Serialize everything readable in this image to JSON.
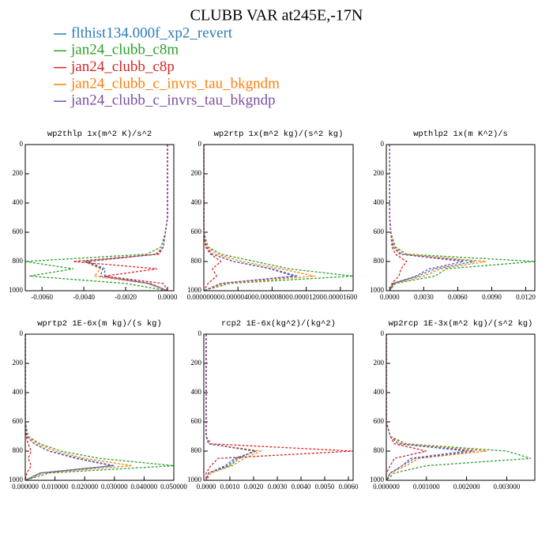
{
  "title": "CLUBB VAR at245E,-17N",
  "legend": [
    {
      "name": "flthist134.000f_xp2_revert",
      "color": "#2b7bb5"
    },
    {
      "name": "jan24_clubb_c8m",
      "color": "#2ca02c"
    },
    {
      "name": "jan24_clubb_c8p",
      "color": "#d62728"
    },
    {
      "name": "jan24_clubb_c_invrs_tau_bkgndm",
      "color": "#ff7f0e"
    },
    {
      "name": "jan24_clubb_c_invrs_tau_bkgndp",
      "color": "#7b4fa3"
    }
  ],
  "chart_data": [
    {
      "type": "line",
      "title": "wp2thlp  1x(m^2 K)/s^2",
      "y": [
        0,
        100,
        200,
        300,
        400,
        500,
        600,
        700,
        750,
        800,
        850,
        900,
        950,
        1000
      ],
      "ylim": [
        1000,
        0
      ],
      "yticks": [
        0,
        200,
        400,
        600,
        800,
        1000
      ],
      "xlim": [
        -0.0068,
        0.0003
      ],
      "xticks": [
        {
          "value": -0.006,
          "label": "-0.0060"
        },
        {
          "value": -0.004,
          "label": "-0.0040"
        },
        {
          "value": -0.002,
          "label": "-0.0020"
        },
        {
          "value": 0,
          "label": "0.0000"
        }
      ],
      "series": [
        {
          "color": "#2b7bb5",
          "values": [
            0,
            0,
            0,
            0,
            0,
            0,
            -0.0001,
            -0.0002,
            -0.0005,
            -0.0038,
            -0.003,
            -0.003,
            -0.0008,
            0
          ]
        },
        {
          "color": "#2ca02c",
          "values": [
            0,
            0,
            0,
            0,
            0,
            0,
            -0.0001,
            -0.0003,
            -0.001,
            -0.0068,
            -0.0045,
            -0.0066,
            -0.002,
            0
          ]
        },
        {
          "color": "#d62728",
          "values": [
            0,
            0,
            0,
            0,
            0,
            0,
            -0.0001,
            -0.0002,
            -0.0004,
            -0.0045,
            -0.0005,
            -0.003,
            -0.0002,
            0
          ]
        },
        {
          "color": "#ff7f0e",
          "values": [
            0,
            0,
            0,
            0,
            0,
            0,
            -0.0001,
            -0.0002,
            -0.0006,
            -0.004,
            -0.0032,
            -0.0035,
            -0.001,
            0
          ]
        },
        {
          "color": "#7b4fa3",
          "values": [
            0,
            0,
            0,
            0,
            0,
            0,
            -0.0001,
            -0.0002,
            -0.0005,
            -0.0039,
            -0.0031,
            -0.0032,
            -0.0009,
            0
          ]
        }
      ]
    },
    {
      "type": "line",
      "title": "wp2rtp  1x(m^2 kg)/(s^2 kg)",
      "y": [
        0,
        100,
        200,
        300,
        400,
        500,
        600,
        700,
        750,
        800,
        850,
        900,
        950,
        1000
      ],
      "ylim": [
        1000,
        0
      ],
      "yticks": [
        0,
        200,
        400,
        600,
        800,
        1000
      ],
      "xlim": [
        0,
        1.75e-05
      ],
      "xticks": [
        {
          "value": 0,
          "label": "0.00000000"
        },
        {
          "value": 4e-06,
          "label": "0.00000400"
        },
        {
          "value": 8e-06,
          "label": "0.00000800"
        },
        {
          "value": 1.2e-05,
          "label": "0.00001200"
        },
        {
          "value": 1.6e-05,
          "label": "0.00001600"
        }
      ],
      "series": [
        {
          "color": "#2b7bb5",
          "values": [
            0,
            0,
            0,
            0,
            0,
            0,
            0,
            3e-07,
            1e-06,
            3.5e-06,
            8e-06,
            1.1e-05,
            2e-06,
            0
          ]
        },
        {
          "color": "#2ca02c",
          "values": [
            0,
            0,
            0,
            0,
            0,
            0,
            0,
            5e-07,
            2e-06,
            6e-06,
            1e-05,
            1.75e-05,
            3e-06,
            0
          ]
        },
        {
          "color": "#d62728",
          "values": [
            0,
            0,
            0,
            0,
            0,
            0,
            0,
            2e-07,
            8e-07,
            2e-06,
            1e-06,
            1.5e-06,
            5e-07,
            0
          ]
        },
        {
          "color": "#ff7f0e",
          "values": [
            0,
            0,
            0,
            0,
            0,
            0,
            0,
            4e-07,
            1.5e-06,
            4.5e-06,
            9e-06,
            1.3e-05,
            2.5e-06,
            0
          ]
        },
        {
          "color": "#7b4fa3",
          "values": [
            0,
            0,
            0,
            0,
            0,
            0,
            0,
            3e-07,
            1e-06,
            3.5e-06,
            7.8e-06,
            1.05e-05,
            2e-06,
            0
          ]
        }
      ]
    },
    {
      "type": "line",
      "title": "wpthlp2  1x(m K^2)/s",
      "y": [
        0,
        100,
        200,
        300,
        400,
        500,
        600,
        700,
        750,
        800,
        850,
        900,
        950,
        1000
      ],
      "ylim": [
        1000,
        0
      ],
      "yticks": [
        0,
        200,
        400,
        600,
        800,
        1000
      ],
      "xlim": [
        -0.0003,
        0.0128
      ],
      "xticks": [
        {
          "value": 0,
          "label": "0.0000"
        },
        {
          "value": 0.003,
          "label": "0.0030"
        },
        {
          "value": 0.006,
          "label": "0.0060"
        },
        {
          "value": 0.009,
          "label": "0.0090"
        },
        {
          "value": 0.012,
          "label": "0.0120"
        }
      ],
      "series": [
        {
          "color": "#2b7bb5",
          "values": [
            0,
            0,
            0,
            0,
            0,
            0,
            0.0001,
            0.0003,
            0.001,
            0.0075,
            0.004,
            0.0025,
            0.0003,
            0
          ]
        },
        {
          "color": "#2ca02c",
          "values": [
            0,
            0,
            0,
            0,
            0,
            0,
            0.0001,
            0.0005,
            0.0015,
            0.0128,
            0.005,
            0.004,
            0.0005,
            0
          ]
        },
        {
          "color": "#d62728",
          "values": [
            0,
            0,
            0,
            0,
            0,
            0,
            0.0001,
            0.0002,
            0.0005,
            0.0015,
            0.001,
            0.0008,
            0.0002,
            0
          ]
        },
        {
          "color": "#ff7f0e",
          "values": [
            0,
            0,
            0,
            0,
            0,
            0,
            0.0001,
            0.0004,
            0.0012,
            0.0085,
            0.0045,
            0.003,
            0.0004,
            0
          ]
        },
        {
          "color": "#7b4fa3",
          "values": [
            0,
            0,
            0,
            0,
            0,
            0,
            0.0001,
            0.0003,
            0.0009,
            0.0065,
            0.0035,
            0.0023,
            0.0003,
            0
          ]
        }
      ]
    },
    {
      "type": "line",
      "title": "wprtp2  1E-6x(m kg)/(s kg)",
      "y": [
        0,
        100,
        200,
        300,
        400,
        500,
        600,
        700,
        750,
        800,
        850,
        900,
        950,
        1000
      ],
      "ylim": [
        1000,
        0
      ],
      "yticks": [
        0,
        200,
        400,
        600,
        800,
        1000
      ],
      "xlim": [
        0,
        0.05
      ],
      "xticks": [
        {
          "value": 0,
          "label": "0.000000"
        },
        {
          "value": 0.01,
          "label": "0.010000"
        },
        {
          "value": 0.02,
          "label": "0.020000"
        },
        {
          "value": 0.03,
          "label": "0.030000"
        },
        {
          "value": 0.04,
          "label": "0.040000"
        },
        {
          "value": 0.05,
          "label": "0.050000"
        }
      ],
      "series": [
        {
          "color": "#2b7bb5",
          "values": [
            0,
            0,
            0,
            0,
            0,
            0,
            0,
            0.0005,
            0.003,
            0.008,
            0.018,
            0.03,
            0.005,
            0
          ]
        },
        {
          "color": "#2ca02c",
          "values": [
            0,
            0,
            0,
            0,
            0,
            0,
            0,
            0.001,
            0.005,
            0.012,
            0.025,
            0.05,
            0.008,
            0
          ]
        },
        {
          "color": "#d62728",
          "values": [
            0,
            0,
            0,
            0,
            0,
            0,
            0,
            0.0003,
            0.001,
            0.002,
            0.001,
            0.002,
            0.0005,
            0
          ]
        },
        {
          "color": "#ff7f0e",
          "values": [
            0,
            0,
            0,
            0,
            0,
            0,
            0,
            0.0008,
            0.004,
            0.01,
            0.02,
            0.036,
            0.006,
            0
          ]
        },
        {
          "color": "#7b4fa3",
          "values": [
            0,
            0,
            0,
            0,
            0,
            0,
            0,
            0.0005,
            0.003,
            0.008,
            0.017,
            0.029,
            0.005,
            0
          ]
        }
      ]
    },
    {
      "type": "line",
      "title": "rcp2  1E-6x(kg^2)/(kg^2)",
      "y": [
        0,
        100,
        200,
        300,
        400,
        500,
        600,
        700,
        750,
        800,
        850,
        900,
        950,
        1000
      ],
      "ylim": [
        1000,
        0
      ],
      "yticks": [
        0,
        200,
        400,
        600,
        800,
        1000
      ],
      "xlim": [
        -0.0001,
        0.0062
      ],
      "xticks": [
        {
          "value": 0,
          "label": "0.0000"
        },
        {
          "value": 0.001,
          "label": "0.0010"
        },
        {
          "value": 0.002,
          "label": "0.0020"
        },
        {
          "value": 0.003,
          "label": "0.0030"
        },
        {
          "value": 0.004,
          "label": "0.0040"
        },
        {
          "value": 0.005,
          "label": "0.0050"
        },
        {
          "value": 0.006,
          "label": "0.0060"
        }
      ],
      "series": [
        {
          "color": "#2b7bb5",
          "values": [
            0,
            0,
            0,
            0,
            0,
            0,
            0,
            0,
            0.0001,
            0.0021,
            0.0012,
            0.0008,
            0.0001,
            0
          ]
        },
        {
          "color": "#2ca02c",
          "values": [
            0,
            0,
            0,
            0,
            0,
            0,
            0,
            0,
            0.0001,
            0.002,
            0.0014,
            0.001,
            0.0001,
            0
          ]
        },
        {
          "color": "#d62728",
          "values": [
            0,
            0,
            0,
            0,
            0,
            0,
            0,
            0,
            0.0002,
            0.0062,
            0.0005,
            0.0002,
            0,
            0
          ]
        },
        {
          "color": "#ff7f0e",
          "values": [
            0,
            0,
            0,
            0,
            0,
            0,
            0,
            0,
            0.0001,
            0.0023,
            0.0016,
            0.0011,
            0.0002,
            0
          ]
        },
        {
          "color": "#7b4fa3",
          "values": [
            0,
            0,
            0,
            0,
            0,
            0,
            0,
            0,
            0.0001,
            0.0021,
            0.0013,
            0.0009,
            0.0001,
            0
          ]
        }
      ]
    },
    {
      "type": "line",
      "title": "wp2rcp  1E-3x(m^2 kg)/(s^2 kg)",
      "y": [
        0,
        100,
        200,
        300,
        400,
        500,
        600,
        700,
        750,
        800,
        850,
        900,
        950,
        1000
      ],
      "ylim": [
        1000,
        0
      ],
      "yticks": [
        0,
        200,
        400,
        600,
        800,
        1000
      ],
      "xlim": [
        0,
        0.0037
      ],
      "xticks": [
        {
          "value": 0,
          "label": "0.000000"
        },
        {
          "value": 0.001,
          "label": "0.001000"
        },
        {
          "value": 0.002,
          "label": "0.002000"
        },
        {
          "value": 0.003,
          "label": "0.003000"
        }
      ],
      "series": [
        {
          "color": "#2b7bb5",
          "values": [
            0,
            0,
            0,
            0,
            0,
            0,
            0,
            0.0001,
            0.0003,
            0.002,
            0.0006,
            0.0004,
            0.0001,
            0
          ]
        },
        {
          "color": "#2ca02c",
          "values": [
            0,
            0,
            0,
            0,
            0,
            0,
            0,
            0.0001,
            0.0005,
            0.003,
            0.0036,
            0.001,
            0.0002,
            0
          ]
        },
        {
          "color": "#d62728",
          "values": [
            0,
            0,
            0,
            0,
            0,
            0,
            0,
            0.0001,
            0.0002,
            0.001,
            0.0002,
            0.0001,
            0,
            0
          ]
        },
        {
          "color": "#ff7f0e",
          "values": [
            0,
            0,
            0,
            0,
            0,
            0,
            0,
            0.0001,
            0.0004,
            0.0025,
            0.0008,
            0.0005,
            0.0001,
            0
          ]
        },
        {
          "color": "#7b4fa3",
          "values": [
            0,
            0,
            0,
            0,
            0,
            0,
            0,
            0.0001,
            0.0003,
            0.0022,
            0.0007,
            0.0004,
            0.0001,
            0
          ]
        }
      ]
    }
  ]
}
